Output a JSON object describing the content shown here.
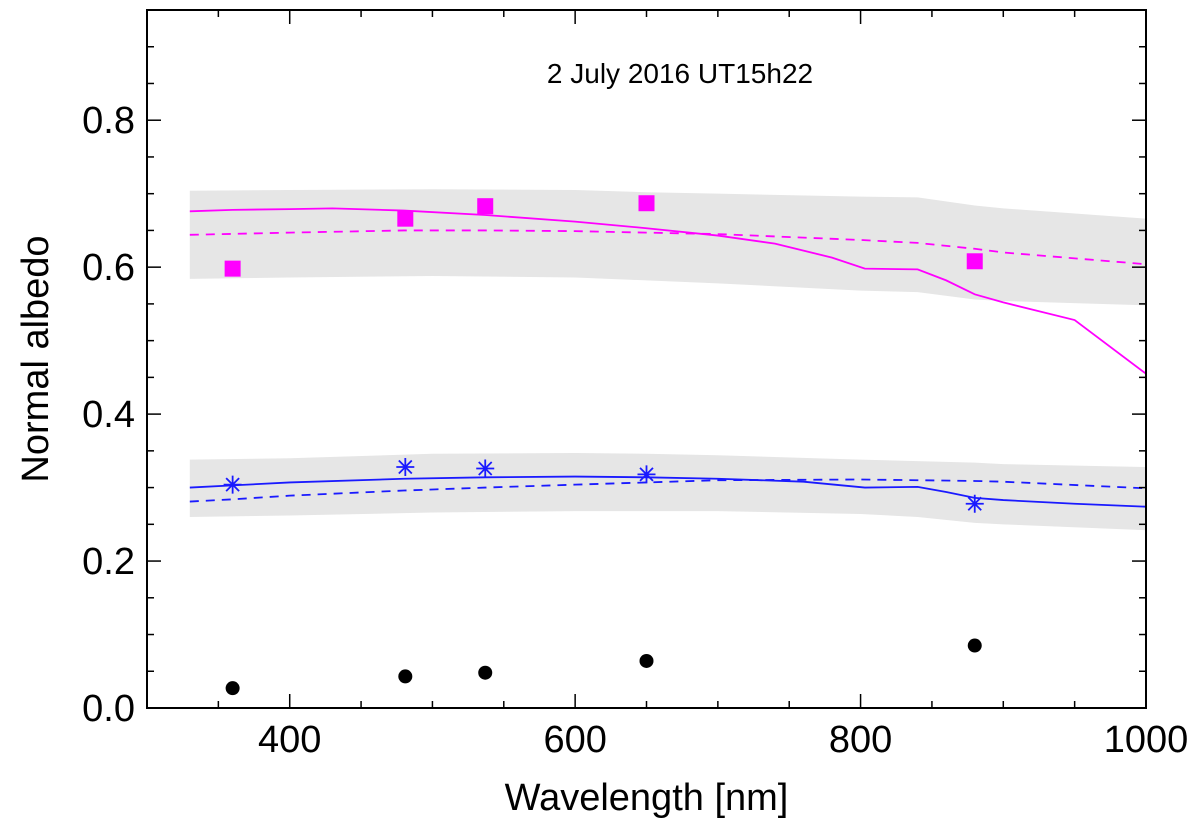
{
  "chart_data": {
    "type": "line",
    "title": "2 July 2016 UT15h22",
    "xlabel": "Wavelength [nm]",
    "ylabel": "Normal albedo",
    "xlim": [
      300,
      1000
    ],
    "ylim": [
      0,
      0.95
    ],
    "x_ticks": [
      400,
      600,
      800,
      1000
    ],
    "x_tick_labels": [
      "400",
      "600",
      "800",
      "1000"
    ],
    "y_ticks": [
      0.0,
      0.2,
      0.4,
      0.6,
      0.8
    ],
    "y_tick_labels": [
      "0.0",
      "0.2",
      "0.4",
      "0.6",
      "0.8"
    ],
    "x_minor_step": 50,
    "y_minor_step": 0.05,
    "colors": {
      "magenta": "#ff00ff",
      "blue": "#1a1aff",
      "band": "#e6e6e6",
      "black": "#000000"
    },
    "bands": [
      {
        "name": "magenta uncertainty band",
        "x": [
          330,
          400,
          500,
          600,
          650,
          700,
          800,
          840,
          880,
          900,
          1000
        ],
        "upper": [
          0.704,
          0.705,
          0.706,
          0.705,
          0.702,
          0.7,
          0.696,
          0.695,
          0.684,
          0.68,
          0.666
        ],
        "lower": [
          0.584,
          0.586,
          0.588,
          0.586,
          0.582,
          0.578,
          0.568,
          0.566,
          0.556,
          0.554,
          0.548
        ]
      },
      {
        "name": "blue uncertainty band",
        "x": [
          330,
          400,
          500,
          600,
          650,
          700,
          800,
          840,
          880,
          900,
          1000
        ],
        "upper": [
          0.338,
          0.34,
          0.346,
          0.347,
          0.346,
          0.344,
          0.338,
          0.336,
          0.334,
          0.332,
          0.328
        ],
        "lower": [
          0.26,
          0.262,
          0.266,
          0.268,
          0.268,
          0.268,
          0.264,
          0.26,
          0.252,
          0.25,
          0.242
        ]
      }
    ],
    "series": [
      {
        "name": "magenta model (solid)",
        "color": "#ff00ff",
        "style": "solid",
        "x": [
          330,
          360,
          400,
          430,
          480,
          537,
          600,
          650,
          700,
          740,
          780,
          803,
          840,
          860,
          880,
          900,
          950,
          1000
        ],
        "y": [
          0.676,
          0.678,
          0.679,
          0.68,
          0.677,
          0.671,
          0.662,
          0.653,
          0.643,
          0.632,
          0.613,
          0.598,
          0.597,
          0.582,
          0.563,
          0.552,
          0.528,
          0.455
        ]
      },
      {
        "name": "magenta model (dashed)",
        "color": "#ff00ff",
        "style": "dashed",
        "x": [
          330,
          400,
          480,
          537,
          600,
          650,
          700,
          800,
          840,
          880,
          900,
          1000
        ],
        "y": [
          0.644,
          0.647,
          0.65,
          0.65,
          0.649,
          0.647,
          0.645,
          0.637,
          0.633,
          0.625,
          0.62,
          0.604
        ]
      },
      {
        "name": "blue model (solid)",
        "color": "#1a1aff",
        "style": "solid",
        "x": [
          330,
          360,
          400,
          480,
          537,
          600,
          650,
          700,
          760,
          803,
          840,
          860,
          880,
          900,
          950,
          1000
        ],
        "y": [
          0.3,
          0.303,
          0.307,
          0.312,
          0.314,
          0.315,
          0.314,
          0.312,
          0.308,
          0.3,
          0.301,
          0.294,
          0.286,
          0.283,
          0.278,
          0.274
        ]
      },
      {
        "name": "blue model (dashed)",
        "color": "#1a1aff",
        "style": "dashed",
        "x": [
          330,
          360,
          400,
          480,
          537,
          600,
          650,
          700,
          800,
          840,
          880,
          900,
          1000
        ],
        "y": [
          0.281,
          0.284,
          0.289,
          0.296,
          0.3,
          0.304,
          0.307,
          0.31,
          0.311,
          0.31,
          0.309,
          0.308,
          0.299
        ]
      }
    ],
    "points": [
      {
        "name": "magenta squares",
        "marker": "square",
        "color": "#ff00ff",
        "x": [
          360,
          481,
          537,
          650,
          880
        ],
        "y": [
          0.598,
          0.666,
          0.683,
          0.687,
          0.608
        ]
      },
      {
        "name": "blue asterisks",
        "marker": "asterisk",
        "color": "#1a1aff",
        "x": [
          360,
          481,
          537,
          650,
          880
        ],
        "y": [
          0.304,
          0.328,
          0.326,
          0.318,
          0.278
        ]
      },
      {
        "name": "black circles",
        "marker": "circle",
        "color": "#000000",
        "x": [
          360,
          481,
          537,
          650,
          880
        ],
        "y": [
          0.027,
          0.043,
          0.048,
          0.064,
          0.085
        ]
      }
    ]
  }
}
